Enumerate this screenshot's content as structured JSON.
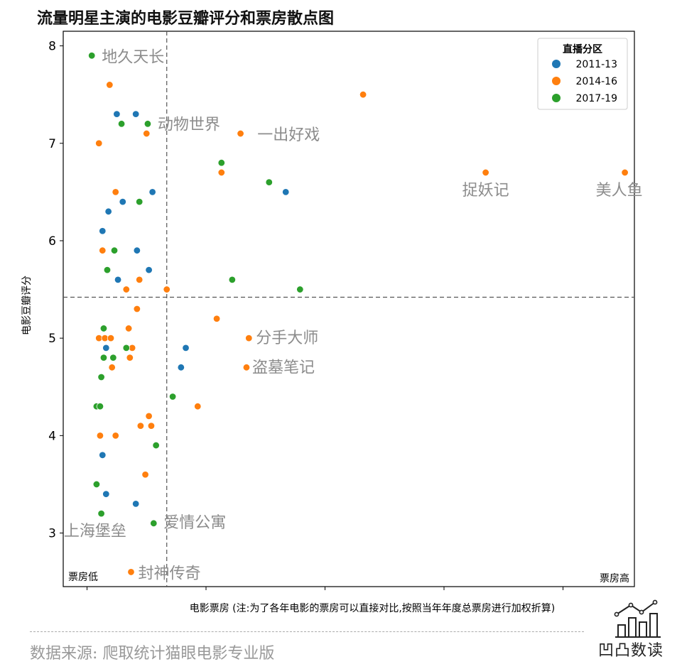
{
  "title": "流量明星主演的电影豆瓣评分和票房散点图",
  "source": "数据来源: 爬取统计猫眼电影专业版",
  "logo_text": "凹凸数读",
  "logo_icon": "line-bar-chart-icon",
  "chart_data": {
    "type": "scatter",
    "title": "流量明星主演的电影豆瓣评分和票房散点图",
    "xlabel": "电影票房  (注:为了各年电影的票房可以直接对比,按照当年年度总票房进行加权折算)",
    "ylabel": "电影豆瓣评分",
    "x_low_label": "票房低",
    "x_high_label": "票房高",
    "xlim": [
      -0.2,
      4.6
    ],
    "ylim": [
      2.45,
      8.15
    ],
    "yticks": [
      3,
      4,
      5,
      6,
      7,
      8
    ],
    "xticks": [
      0,
      1,
      2,
      3,
      4
    ],
    "show_xtick_labels": false,
    "vline_x": 0.67,
    "hline_y": 5.42,
    "legend": {
      "title": "直播分区",
      "placement": "top-right"
    },
    "series": [
      {
        "name": "2011-13",
        "color": "#1f77b4",
        "points": [
          [
            0.25,
            7.3
          ],
          [
            0.41,
            7.3
          ],
          [
            0.55,
            6.5
          ],
          [
            1.67,
            6.5
          ],
          [
            0.3,
            6.4
          ],
          [
            0.18,
            6.3
          ],
          [
            0.13,
            6.1
          ],
          [
            0.42,
            5.9
          ],
          [
            0.52,
            5.7
          ],
          [
            0.26,
            5.6
          ],
          [
            0.83,
            4.9
          ],
          [
            0.16,
            4.9
          ],
          [
            0.79,
            4.7
          ],
          [
            0.13,
            3.8
          ],
          [
            0.16,
            3.4
          ],
          [
            0.41,
            3.3
          ]
        ]
      },
      {
        "name": "2014-16",
        "color": "#ff7f0e",
        "points": [
          [
            2.32,
            7.5
          ],
          [
            0.19,
            7.6
          ],
          [
            0.1,
            7.0
          ],
          [
            0.5,
            7.1
          ],
          [
            1.29,
            7.1
          ],
          [
            0.24,
            6.5
          ],
          [
            3.35,
            6.7
          ],
          [
            4.52,
            6.7
          ],
          [
            1.13,
            6.7
          ],
          [
            0.13,
            5.9
          ],
          [
            0.44,
            5.6
          ],
          [
            0.33,
            5.5
          ],
          [
            0.67,
            5.5
          ],
          [
            0.42,
            5.3
          ],
          [
            1.09,
            5.2
          ],
          [
            1.36,
            5.0
          ],
          [
            0.35,
            5.1
          ],
          [
            0.1,
            5.0
          ],
          [
            0.15,
            5.0
          ],
          [
            0.2,
            5.0
          ],
          [
            0.38,
            4.9
          ],
          [
            0.36,
            4.8
          ],
          [
            0.21,
            4.7
          ],
          [
            1.34,
            4.7
          ],
          [
            0.52,
            4.2
          ],
          [
            0.54,
            4.1
          ],
          [
            0.45,
            4.1
          ],
          [
            0.93,
            4.3
          ],
          [
            0.11,
            4.0
          ],
          [
            0.24,
            4.0
          ],
          [
            0.49,
            3.6
          ],
          [
            0.37,
            2.6
          ]
        ]
      },
      {
        "name": "2017-19",
        "color": "#2ca02c",
        "points": [
          [
            0.04,
            7.9
          ],
          [
            0.29,
            7.2
          ],
          [
            0.51,
            7.2
          ],
          [
            1.13,
            6.8
          ],
          [
            1.53,
            6.6
          ],
          [
            0.44,
            6.4
          ],
          [
            0.23,
            5.9
          ],
          [
            0.17,
            5.7
          ],
          [
            1.22,
            5.6
          ],
          [
            1.79,
            5.5
          ],
          [
            0.14,
            5.1
          ],
          [
            0.14,
            4.8
          ],
          [
            0.22,
            4.8
          ],
          [
            0.33,
            4.9
          ],
          [
            0.12,
            4.6
          ],
          [
            0.08,
            4.3
          ],
          [
            0.11,
            4.3
          ],
          [
            0.72,
            4.4
          ],
          [
            0.58,
            3.9
          ],
          [
            0.08,
            3.5
          ],
          [
            0.12,
            3.2
          ],
          [
            0.56,
            3.1
          ]
        ]
      }
    ],
    "annotations": [
      {
        "text": "地久天长",
        "x": 0.04,
        "y": 7.9
      },
      {
        "text": "动物世界",
        "x": 0.51,
        "y": 7.2
      },
      {
        "text": "一出好戏",
        "x": 1.36,
        "y": 7.1
      },
      {
        "text": "捉妖记",
        "x": 3.35,
        "y": 6.7
      },
      {
        "text": "美人鱼",
        "x": 4.52,
        "y": 6.7
      },
      {
        "text": "分手大师",
        "x": 1.36,
        "y": 5.0
      },
      {
        "text": "盗墓笔记",
        "x": 1.34,
        "y": 4.7
      },
      {
        "text": "上海堡垒",
        "x": 0.08,
        "y": 3.2
      },
      {
        "text": "爱情公寓",
        "x": 0.56,
        "y": 3.1
      },
      {
        "text": "封神传奇",
        "x": 0.37,
        "y": 2.6
      }
    ]
  }
}
